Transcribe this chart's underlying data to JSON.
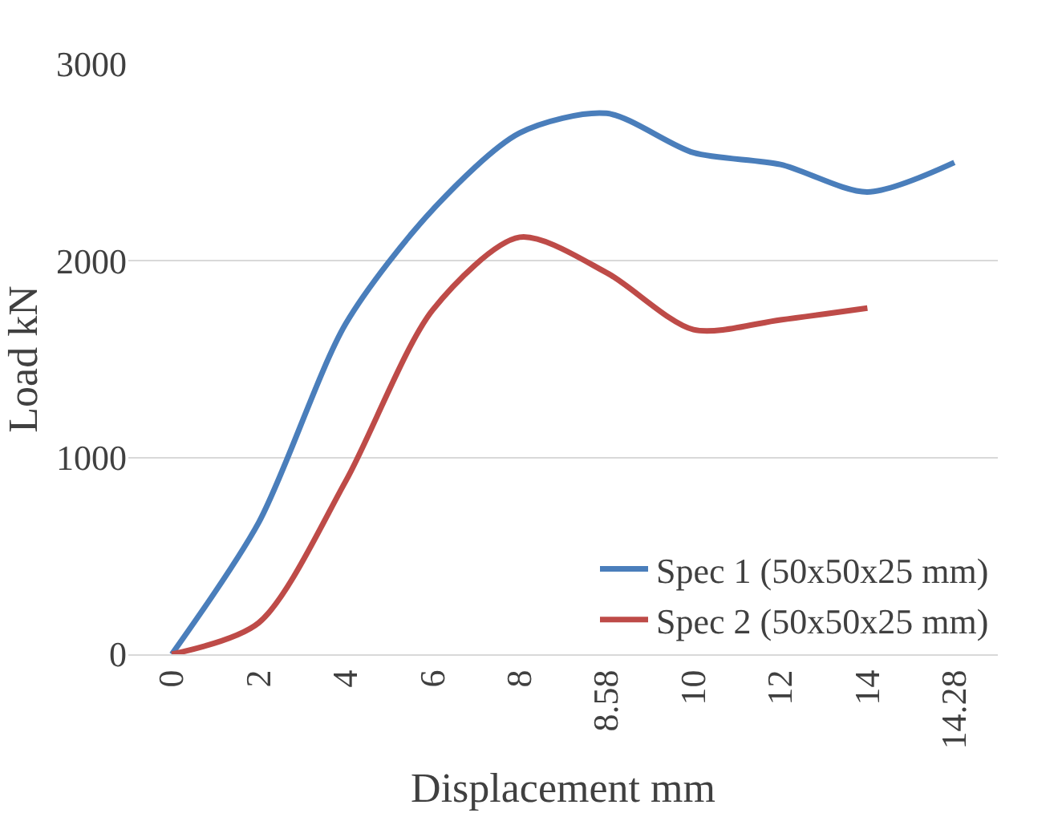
{
  "chart_data": {
    "type": "line",
    "xlabel": "Displacement mm",
    "ylabel": "Load kN",
    "categories": [
      "0",
      "2",
      "4",
      "6",
      "8",
      "8.58",
      "10",
      "12",
      "14",
      "14.28"
    ],
    "series": [
      {
        "name": "Spec 1 (50x50x25 mm)",
        "color": "#4a7ebb",
        "values": [
          0,
          670,
          1680,
          2260,
          2650,
          2750,
          2550,
          2490,
          2350,
          2500
        ]
      },
      {
        "name": "Spec 2 (50x50x25 mm)",
        "color": "#be4b48",
        "values": [
          0,
          160,
          880,
          1750,
          2120,
          1940,
          1650,
          1700,
          1760,
          null
        ]
      }
    ],
    "ylim": [
      0,
      3000
    ],
    "yticks": [
      0,
      1000,
      2000,
      3000
    ],
    "grid": "y",
    "legend": "bottom right",
    "marker": "none",
    "line_style": "solid"
  }
}
